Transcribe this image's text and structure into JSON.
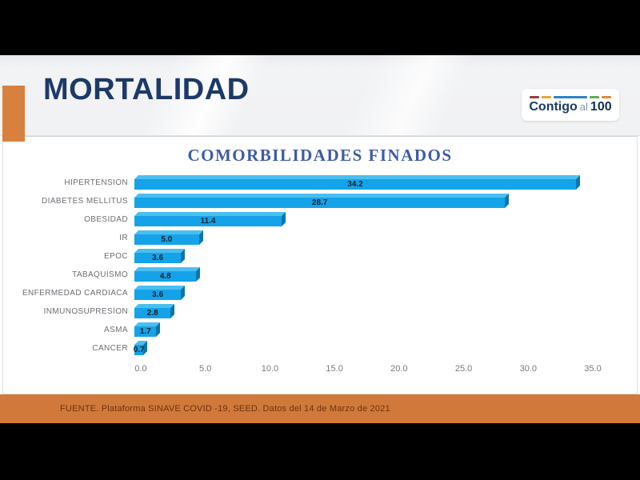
{
  "header": {
    "title": "MORTALIDAD",
    "accent_color": "#d8813f"
  },
  "logo": {
    "text_main": "Contigo",
    "text_mid": "al",
    "text_num": "100",
    "dashes": [
      {
        "color": "#9e3a3c",
        "width": 12
      },
      {
        "color": "#ddaa3c",
        "width": 12
      },
      {
        "color": "#2f83c5",
        "width": 42
      },
      {
        "color": "#5fae4e",
        "width": 12
      },
      {
        "color": "#dd8a3c",
        "width": 12
      }
    ]
  },
  "chart_data": {
    "type": "bar",
    "orientation": "horizontal",
    "title": "COMORBILIDADES FINADOS",
    "categories": [
      "HIPERTENSION",
      "DIABETES MELLITUS",
      "OBESIDAD",
      "IR",
      "EPOC",
      "TABAQUISMO",
      "ENFERMEDAD CARDIACA",
      "INMUNOSUPRESION",
      "ASMA",
      "CANCER"
    ],
    "values": [
      34.2,
      28.7,
      11.4,
      5.0,
      3.6,
      4.8,
      3.6,
      2.8,
      1.7,
      0.7
    ],
    "value_labels": [
      "34.2",
      "28.7",
      "11.4",
      "5.0",
      "3.6",
      "4.8",
      "3.6",
      "2.8",
      "1.7",
      "0.7"
    ],
    "x_ticks": [
      "0.0",
      "5.0",
      "10.0",
      "15.0",
      "20.0",
      "25.0",
      "30.0",
      "35.0"
    ],
    "xlim": [
      0,
      35
    ],
    "grid": false,
    "legend": false,
    "bar_color": "#14a3e8",
    "bar_top_color": "#49bff0",
    "bar_side_color": "#0d74ae",
    "title_color": "#3d5ca6"
  },
  "footer": {
    "source_text": "FUENTE. Plataforma SINAVE COVID -19, SEED. Datos del 14 de Marzo de 2021",
    "band_color": "#d1793a"
  }
}
